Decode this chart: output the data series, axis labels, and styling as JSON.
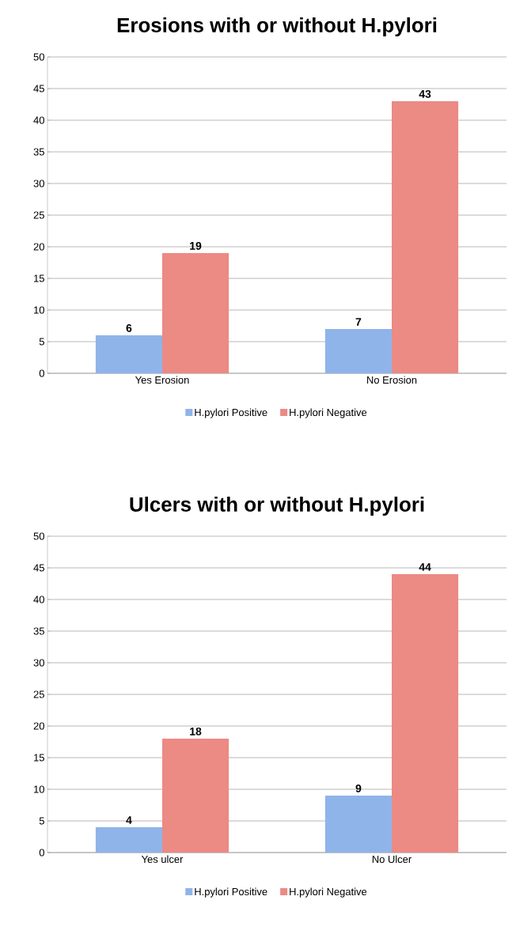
{
  "chart_data": [
    {
      "type": "bar",
      "title": "Erosions with or without H.pylori",
      "categories": [
        "Yes Erosion",
        "No Erosion"
      ],
      "series": [
        {
          "name": "H.pylori Positive",
          "color": "#8fb4ea",
          "values": [
            6,
            7
          ]
        },
        {
          "name": "H.pylori Negative",
          "color": "#ec8a84",
          "values": [
            19,
            43
          ]
        }
      ],
      "ylim": [
        0,
        50
      ],
      "yticks": [
        0,
        5,
        10,
        15,
        20,
        25,
        30,
        35,
        40,
        45,
        50
      ],
      "grid": "y",
      "legend": "bottom",
      "data_labels": true
    },
    {
      "type": "bar",
      "title": "Ulcers with or without H.pylori",
      "categories": [
        "Yes ulcer",
        "No Ulcer"
      ],
      "series": [
        {
          "name": "H.pylori Positive",
          "color": "#8fb4ea",
          "values": [
            4,
            9
          ]
        },
        {
          "name": "H.pylori Negative",
          "color": "#ec8a84",
          "values": [
            18,
            44
          ]
        }
      ],
      "ylim": [
        0,
        50
      ],
      "yticks": [
        0,
        5,
        10,
        15,
        20,
        25,
        30,
        35,
        40,
        45,
        50
      ],
      "grid": "y",
      "legend": "bottom",
      "data_labels": true
    }
  ]
}
